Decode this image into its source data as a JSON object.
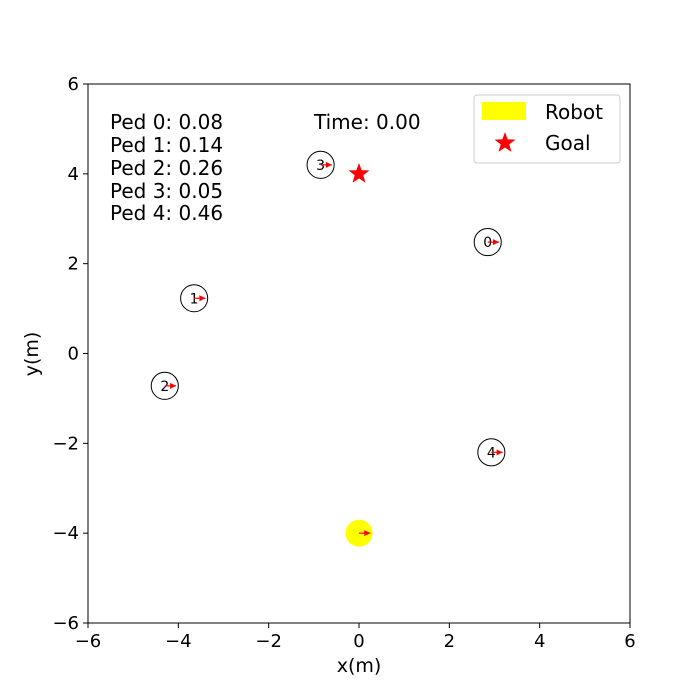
{
  "chart_data": {
    "type": "scatter",
    "title": "",
    "xlabel": "x(m)",
    "ylabel": "y(m)",
    "xlim": [
      -6,
      6
    ],
    "ylim": [
      -6,
      6
    ],
    "xticks": [
      -6,
      -4,
      -2,
      0,
      2,
      4,
      6
    ],
    "yticks": [
      -6,
      -4,
      -2,
      0,
      2,
      4,
      6
    ],
    "xtick_labels": [
      "−6",
      "−4",
      "−2",
      "0",
      "2",
      "4",
      "6"
    ],
    "ytick_labels": [
      "−6",
      "−4",
      "−2",
      "0",
      "2",
      "4",
      "6"
    ],
    "grid": false,
    "legend_position": "top-right",
    "time_text": "Time: 0.00",
    "robot": {
      "name": "Robot",
      "x": 0.0,
      "y": -4.0,
      "radius": 0.3,
      "color": "#ffff00",
      "heading": [
        0.25,
        0.0
      ]
    },
    "goal": {
      "name": "Goal",
      "x": 0.0,
      "y": 4.0,
      "color": "#ff0000"
    },
    "pedestrians": [
      {
        "id": "0",
        "x": 2.85,
        "y": 2.48,
        "radius": 0.3,
        "heading": [
          0.25,
          0.0
        ],
        "label": "Ped 0: 0.08"
      },
      {
        "id": "1",
        "x": -3.65,
        "y": 1.23,
        "radius": 0.3,
        "heading": [
          0.25,
          0.0
        ],
        "label": "Ped 1: 0.14"
      },
      {
        "id": "2",
        "x": -4.3,
        "y": -0.72,
        "radius": 0.3,
        "heading": [
          0.25,
          0.0
        ],
        "label": "Ped 2: 0.26"
      },
      {
        "id": "3",
        "x": -0.85,
        "y": 4.2,
        "radius": 0.3,
        "heading": [
          0.25,
          0.0
        ],
        "label": "Ped 3: 0.05"
      },
      {
        "id": "4",
        "x": 2.93,
        "y": -2.2,
        "radius": 0.3,
        "heading": [
          0.25,
          0.0
        ],
        "label": "Ped 4: 0.46"
      }
    ],
    "arrow_color": "#ff0000"
  }
}
